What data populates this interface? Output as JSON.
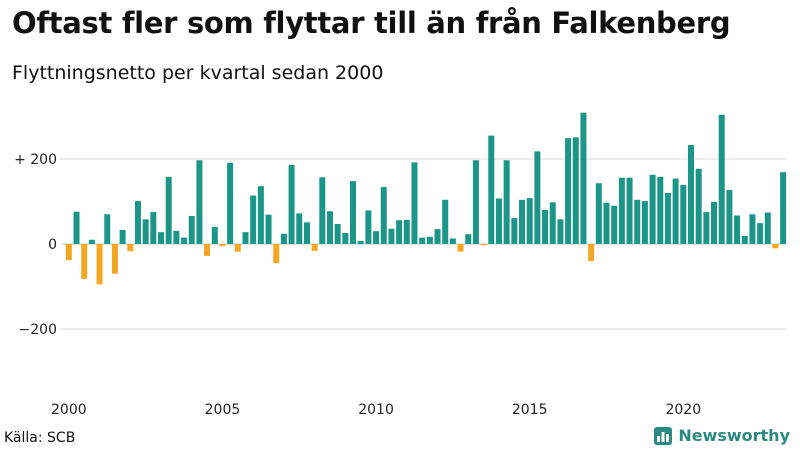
{
  "header": {
    "title": "Oftast fler som flyttar till än från Falkenberg",
    "subtitle": "Flyttningsnetto per kvartal sedan 2000"
  },
  "footer": {
    "source": "Källa: SCB",
    "brand": "Newsworthy",
    "brand_icon": "bar-chart-logo-icon"
  },
  "colors": {
    "positive": "#1a9588",
    "negative": "#f5a623",
    "grid": "#dddddd",
    "brand": "#2b8a80"
  },
  "chart_data": {
    "type": "bar",
    "title": "Oftast fler som flyttar till än från Falkenberg",
    "subtitle": "Flyttningsnetto per kvartal sedan 2000",
    "xlabel": "",
    "ylabel": "",
    "ylim": [
      -330,
      330
    ],
    "grid": true,
    "yticks": [
      {
        "value": 200,
        "label": "+ 200"
      },
      {
        "value": 0,
        "label": "0"
      },
      {
        "value": -200,
        "label": "−200"
      }
    ],
    "xticks": [
      {
        "quarter_index": 0,
        "label": "2000"
      },
      {
        "quarter_index": 20,
        "label": "2005"
      },
      {
        "quarter_index": 40,
        "label": "2010"
      },
      {
        "quarter_index": 60,
        "label": "2015"
      },
      {
        "quarter_index": 80,
        "label": "2020"
      }
    ],
    "series": [
      {
        "values": [
          -38,
          76,
          -82,
          10,
          -95,
          70,
          -70,
          33,
          -17,
          101,
          58,
          75,
          28,
          158,
          31,
          15,
          66,
          197,
          -28,
          40,
          -5,
          191,
          -18,
          28,
          114,
          136,
          69,
          -45,
          24,
          186,
          72,
          51,
          -16,
          157,
          77,
          47,
          26,
          148,
          7,
          79,
          30,
          134,
          36,
          56,
          57,
          192,
          15,
          17,
          35,
          104,
          13,
          -18,
          23,
          197,
          -3,
          255,
          107,
          197,
          61,
          104,
          108,
          218,
          80,
          98,
          58,
          249,
          251,
          309,
          -40,
          143,
          97,
          90,
          156,
          156,
          104,
          101,
          163,
          158,
          120,
          154,
          139,
          233,
          177,
          75,
          99,
          304,
          127,
          67,
          19,
          70,
          49,
          74,
          -10,
          169
        ]
      }
    ]
  }
}
